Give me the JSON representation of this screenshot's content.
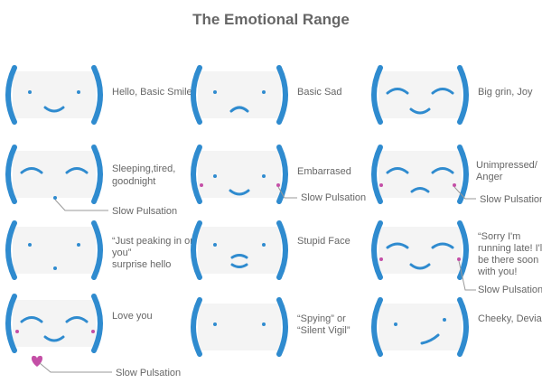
{
  "title": "The Emotional Range",
  "faces": [
    {
      "label": [
        "Hello, Basic Smile"
      ]
    },
    {
      "label": [
        "Basic Sad"
      ]
    },
    {
      "label": [
        "Big grin, Joy"
      ]
    },
    {
      "label": [
        "Sleeping,tired,",
        "goodnight"
      ],
      "note": "Slow Pulsation"
    },
    {
      "label": [
        "Embarrased"
      ],
      "note": "Slow Pulsation"
    },
    {
      "label": [
        "Unimpressed/",
        "Anger"
      ],
      "note": "Slow Pulsation"
    },
    {
      "label": [
        "“Just peaking in on",
        "you”",
        "surprise hello"
      ]
    },
    {
      "label": [
        "Stupid Face"
      ]
    },
    {
      "label": [
        "“Sorry I'm",
        "running late! I'll",
        "be there soon",
        "with you!"
      ],
      "note": "Slow Pulsation"
    },
    {
      "label": [
        "Love you"
      ],
      "note": "Slow Pulsation"
    },
    {
      "label": [
        "“Spying” or",
        "“Silent Vigil”"
      ]
    },
    {
      "label": [
        "Cheeky, Deviant."
      ]
    }
  ]
}
